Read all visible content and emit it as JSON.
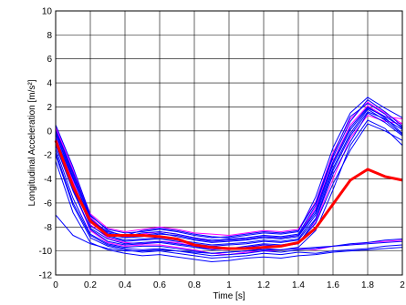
{
  "chart_data": {
    "type": "line",
    "title": "",
    "xlabel": "Time [s]",
    "ylabel": "Longitudinal Acceleration [m/s²]",
    "xlim": [
      0,
      2
    ],
    "ylim": [
      -12,
      10
    ],
    "xticks": [
      0,
      0.2,
      0.4,
      0.6,
      0.8,
      1,
      1.2,
      1.4,
      1.6,
      1.8,
      2
    ],
    "xtick_labels": [
      "0",
      "0.2",
      "0.4",
      "0.6",
      "0.8",
      "1",
      "1.2",
      "1.4",
      "1.6",
      "1.8",
      "2"
    ],
    "yticks": [
      -12,
      -10,
      -8,
      -6,
      -4,
      -2,
      0,
      2,
      4,
      6,
      8,
      10
    ],
    "ytick_labels": [
      "-12",
      "-10",
      "-8",
      "-6",
      "-4",
      "-2",
      "0",
      "2",
      "4",
      "6",
      "8",
      "10"
    ],
    "grid": true,
    "x": [
      0,
      0.1,
      0.2,
      0.3,
      0.4,
      0.5,
      0.6,
      0.7,
      0.8,
      0.9,
      1.0,
      1.1,
      1.2,
      1.3,
      1.4,
      1.5,
      1.6,
      1.7,
      1.8,
      1.9,
      2.0
    ],
    "series": [
      {
        "color": "#ff0000",
        "emphasis": true,
        "values": [
          -0.8,
          -4.6,
          -7.5,
          -8.7,
          -8.7,
          -8.7,
          -8.8,
          -9.0,
          -9.5,
          -9.7,
          -9.8,
          -9.8,
          -9.7,
          -9.6,
          -9.3,
          -8.1,
          -6.1,
          -4.1,
          -3.2,
          -3.8,
          -4.1
        ]
      },
      {
        "color": "#ff00ff",
        "values": [
          0.2,
          -3.5,
          -7.2,
          -8.5,
          -8.9,
          -8.6,
          -8.4,
          -8.6,
          -8.9,
          -9.2,
          -9.1,
          -9.0,
          -8.8,
          -8.9,
          -8.7,
          -6.4,
          -2.5,
          0.5,
          2.1,
          1.2,
          1.0
        ]
      },
      {
        "color": "#ff00ff",
        "values": [
          -0.5,
          -4.2,
          -7.8,
          -8.9,
          -9.3,
          -9.4,
          -9.2,
          -9.3,
          -9.6,
          -9.8,
          -9.9,
          -9.7,
          -9.5,
          -9.6,
          -9.4,
          -7.6,
          -4.0,
          -0.6,
          1.3,
          0.8,
          0.6
        ]
      },
      {
        "color": "#ff00ff",
        "values": [
          -1.0,
          -4.9,
          -8.3,
          -9.3,
          -9.6,
          -9.5,
          -9.5,
          -9.7,
          -9.9,
          -10.2,
          -10.3,
          -10.1,
          -10.0,
          -9.9,
          -9.8,
          -9.9,
          -9.6,
          -9.5,
          -9.3,
          -9.2,
          -9.1
        ]
      },
      {
        "color": "#ff00ff",
        "values": [
          0.3,
          -3.2,
          -6.9,
          -8.1,
          -8.4,
          -8.2,
          -8.0,
          -8.2,
          -8.5,
          -8.6,
          -8.7,
          -8.5,
          -8.3,
          -8.4,
          -8.2,
          -5.9,
          -1.8,
          1.0,
          2.4,
          1.5,
          0.6
        ]
      },
      {
        "color": "#0000ff",
        "values": [
          0.5,
          -3.0,
          -7.0,
          -8.3,
          -8.8,
          -8.5,
          -8.4,
          -8.6,
          -8.9,
          -9.1,
          -9.0,
          -8.9,
          -8.7,
          -8.8,
          -8.6,
          -6.2,
          -2.2,
          0.8,
          2.6,
          1.6,
          0.4
        ]
      },
      {
        "color": "#0000ff",
        "values": [
          -0.2,
          -3.8,
          -7.6,
          -8.7,
          -9.1,
          -9.0,
          -8.9,
          -9.1,
          -9.3,
          -9.5,
          -9.4,
          -9.3,
          -9.1,
          -9.2,
          -9.0,
          -7.0,
          -3.1,
          -0.2,
          1.8,
          0.9,
          -0.3
        ]
      },
      {
        "color": "#0000ff",
        "values": [
          -1.5,
          -5.6,
          -8.6,
          -9.4,
          -9.7,
          -9.6,
          -9.6,
          -9.8,
          -10.0,
          -10.2,
          -10.1,
          -10.0,
          -9.8,
          -9.9,
          -9.7,
          -8.3,
          -4.9,
          -1.2,
          0.9,
          0.2,
          -1.2
        ]
      },
      {
        "color": "#0000ff",
        "values": [
          -2.0,
          -6.2,
          -8.9,
          -9.6,
          -9.9,
          -10.1,
          -10.0,
          -10.2,
          -10.4,
          -10.6,
          -10.5,
          -10.4,
          -10.2,
          -10.3,
          -10.1,
          -10.2,
          -10.0,
          -9.9,
          -9.8,
          -9.6,
          -9.5
        ]
      },
      {
        "color": "#0000ff",
        "values": [
          -0.6,
          -4.0,
          -7.4,
          -8.4,
          -8.7,
          -8.3,
          -8.1,
          -8.3,
          -8.6,
          -8.8,
          -8.9,
          -8.7,
          -8.5,
          -8.6,
          -8.4,
          -5.5,
          -1.4,
          1.5,
          2.8,
          1.9,
          1.1
        ]
      },
      {
        "color": "#0000ff",
        "values": [
          -1.2,
          -5.0,
          -8.1,
          -9.0,
          -9.4,
          -9.3,
          -9.2,
          -9.4,
          -9.6,
          -9.9,
          -9.8,
          -9.7,
          -9.5,
          -9.6,
          -9.4,
          -7.4,
          -3.6,
          -0.9,
          1.5,
          0.7,
          -0.4
        ]
      },
      {
        "color": "#0000ff",
        "values": [
          0.1,
          -3.4,
          -7.1,
          -8.2,
          -8.5,
          -8.4,
          -8.2,
          -8.4,
          -8.7,
          -8.9,
          -8.8,
          -8.6,
          -8.4,
          -8.5,
          -8.3,
          -6.0,
          -2.0,
          1.2,
          2.3,
          1.4,
          0.2
        ]
      },
      {
        "color": "#0000ff",
        "values": [
          -2.5,
          -6.8,
          -9.3,
          -9.9,
          -10.2,
          -10.4,
          -10.3,
          -10.5,
          -10.7,
          -10.9,
          -10.8,
          -10.6,
          -10.5,
          -10.6,
          -10.4,
          -10.3,
          -10.1,
          -10.0,
          -9.9,
          -9.8,
          -9.7
        ]
      },
      {
        "color": "#0000ff",
        "values": [
          -0.9,
          -4.4,
          -7.9,
          -8.8,
          -9.2,
          -9.1,
          -9.0,
          -9.2,
          -9.4,
          -9.6,
          -9.5,
          -9.4,
          -9.2,
          -9.3,
          -9.1,
          -7.3,
          -3.3,
          -0.4,
          1.6,
          1.0,
          0.1
        ]
      },
      {
        "color": "#0000ff",
        "values": [
          0.0,
          -3.6,
          -7.3,
          -8.6,
          -8.9,
          -8.8,
          -8.6,
          -8.7,
          -9.0,
          -9.2,
          -9.1,
          -9.0,
          -8.8,
          -8.9,
          -8.7,
          -6.6,
          -2.6,
          0.3,
          2.0,
          1.1,
          -0.2
        ]
      },
      {
        "color": "#0000ff",
        "values": [
          -1.8,
          -6.0,
          -8.7,
          -9.5,
          -9.8,
          -9.9,
          -9.8,
          -10.0,
          -10.2,
          -10.4,
          -10.3,
          -10.2,
          -10.0,
          -10.1,
          -9.9,
          -9.8,
          -9.6,
          -9.4,
          -9.3,
          -9.1,
          -9.0
        ]
      },
      {
        "color": "#0000ff",
        "values": [
          -7.0,
          -8.7,
          -9.4,
          -9.8,
          -10.0,
          -10.0,
          -9.9,
          -10.0,
          -10.1,
          -10.2,
          -10.1,
          -10.0,
          -9.9,
          -9.9,
          -9.8,
          -9.7,
          -9.6,
          -9.5,
          -9.4,
          -9.3,
          -9.2
        ]
      },
      {
        "color": "#0000ff",
        "values": [
          -1.0,
          -4.8,
          -8.2,
          -9.2,
          -9.5,
          -9.4,
          -9.3,
          -9.5,
          -9.7,
          -9.9,
          -9.8,
          -9.6,
          -9.4,
          -9.5,
          -9.3,
          -7.7,
          -4.4,
          -1.6,
          0.6,
          0.0,
          -0.8
        ]
      },
      {
        "color": "#0000ff",
        "values": [
          -0.3,
          -3.9,
          -7.5,
          -8.5,
          -8.8,
          -8.7,
          -8.5,
          -8.8,
          -9.1,
          -9.3,
          -9.2,
          -9.1,
          -8.9,
          -9.0,
          -8.8,
          -6.8,
          -2.8,
          0.1,
          1.9,
          1.2,
          0.3
        ]
      }
    ]
  }
}
